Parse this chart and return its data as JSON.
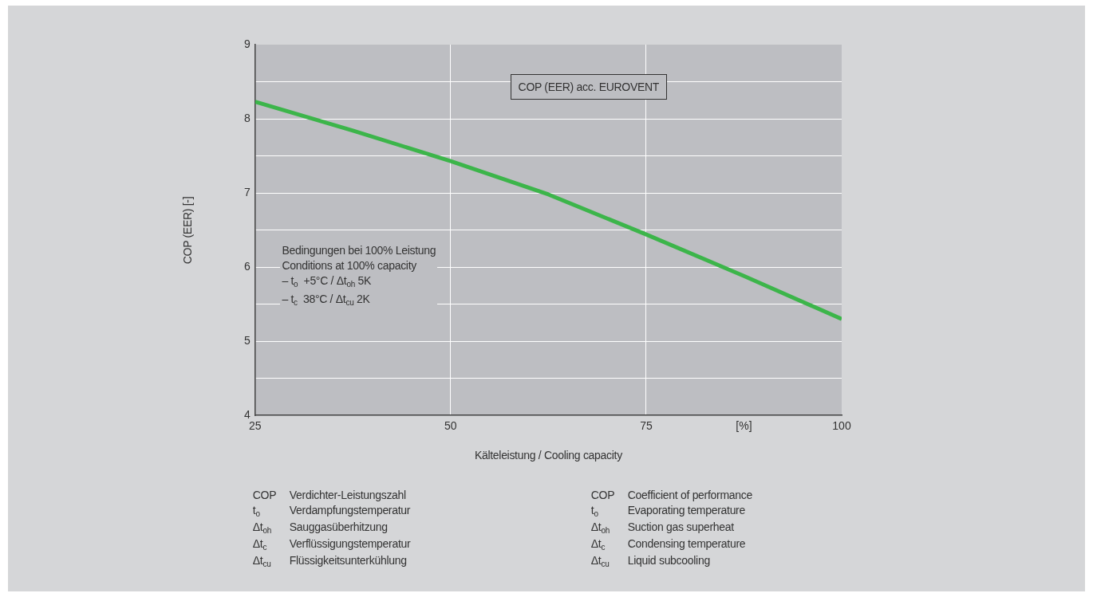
{
  "chart_data": {
    "type": "line",
    "xlabel": "Kälteleistung / Cooling capacity",
    "ylabel": "COP (EER) [-]",
    "x": [
      25,
      37.5,
      50,
      62.5,
      75,
      87.5,
      100
    ],
    "series": [
      {
        "color": "#3cb54a",
        "values": [
          8.23,
          7.84,
          7.43,
          6.98,
          6.44,
          5.88,
          5.3
        ]
      }
    ],
    "xlim": [
      25,
      100
    ],
    "xticks": [
      25,
      50,
      75,
      {
        "value": 87.5,
        "label": "[%]"
      },
      100
    ],
    "ylim": [
      4,
      9
    ],
    "yticks": [
      4,
      {
        "value": 4.5,
        "label": null
      },
      5,
      {
        "value": 5.5,
        "label": null
      },
      6,
      {
        "value": 6.5,
        "label": null
      },
      7,
      {
        "value": 7.5,
        "label": null
      },
      8,
      {
        "value": 8.5,
        "label": null
      },
      9
    ],
    "grid": true,
    "legend": false,
    "marker": "none",
    "line_style": "solid",
    "annotations": [
      "COP (EER) acc. EUROVENT",
      "Bedingungen bei 100% Leistung\nConditions at 100% capacity\n– t$_{o}$  +5°C / Δt$_{oh}$ 5K\n– t$_{c}$  38°C / Δt$_{cu}$ 2K",
      "COP\tVerdichter-Leistungszahl",
      "t$_{o}$\tVerdampfungstemperatur",
      "Δt$_{oh}$\tSauggasüberhitzung",
      "Δt$_{c}$\tVerflüssigungstemperatur",
      "Δt$_{cu}$\tFlüssigkeitsunterkühlung",
      "COP\tCoefficient of performance",
      "t$_{o}$\tEvaporating temperature",
      "Δt$_{oh}$\tSuction gas superheat",
      "Δt$_{c}$\tCondensing temperature",
      "Δt$_{cu}$\tLiquid subcooling"
    ]
  }
}
